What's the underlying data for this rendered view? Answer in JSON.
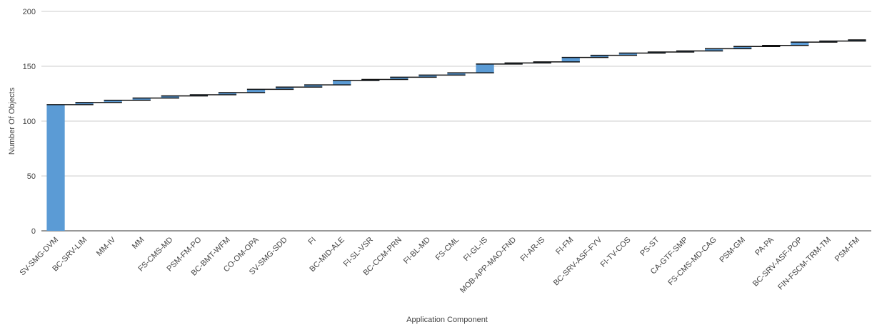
{
  "chart_data": {
    "type": "bar",
    "subtype": "waterfall",
    "title": "",
    "xlabel": "Application Component",
    "ylabel": "Number Of Objects",
    "ylim": [
      0,
      200
    ],
    "yticks": [
      0,
      50,
      100,
      150,
      200
    ],
    "grid": true,
    "categories": [
      "SV-SMG-DVM",
      "BC-SRV-LIM",
      "MM-IV",
      "MM",
      "FS-CMS-MD",
      "PSM-FM-PO",
      "BC-BMT-WFM",
      "CO-OM-OPA",
      "SV-SMG-SDD",
      "FI",
      "BC-MID-ALE",
      "FI-SL-VSR",
      "BC-CCM-PRN",
      "FI-BL-MD",
      "FS-CML",
      "FI-GL-IS",
      "MOB-APP-MAO-FND",
      "FI-AR-IS",
      "FI-FM",
      "BC-SRV-ASF-FYV",
      "FI-TV-COS",
      "PS-ST",
      "CA-GTF-SMP",
      "FS-CMS-MD-CAG",
      "PSM-GM",
      "PA-PA",
      "BC-SRV-ASF-POP",
      "FIN-FSCM-TRM-TM",
      "PSM-FM"
    ],
    "series": [
      {
        "values": [
          115,
          2,
          2,
          2,
          2,
          1,
          2,
          3,
          2,
          2,
          4,
          1,
          2,
          2,
          2,
          8,
          1,
          1,
          4,
          2,
          2,
          1,
          1,
          2,
          2,
          1,
          3,
          1,
          1
        ]
      }
    ],
    "bar_color": "#5b9bd5",
    "connector_color": "#111111"
  }
}
